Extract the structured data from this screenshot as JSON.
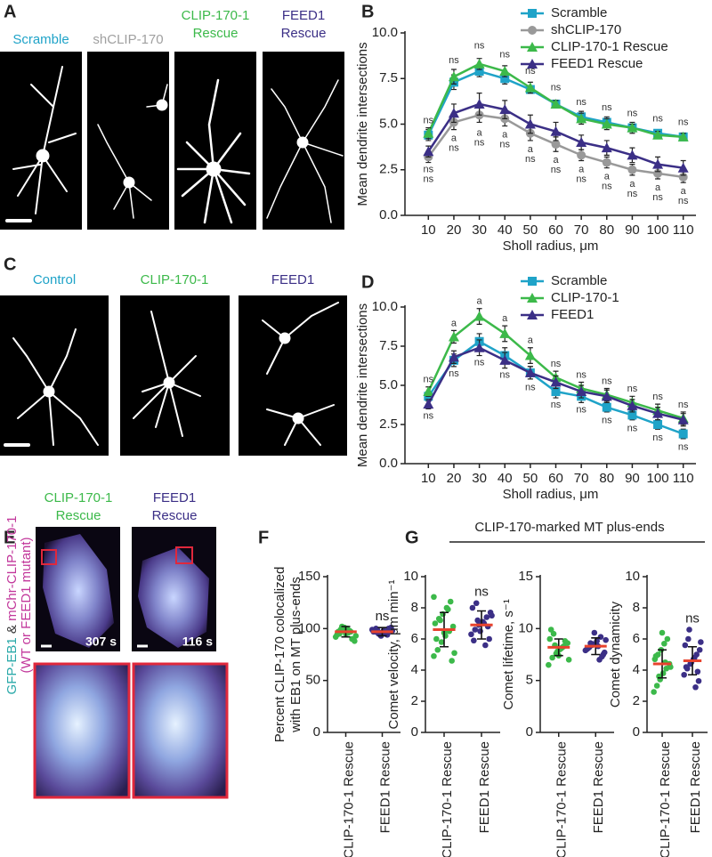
{
  "panel_a": {
    "letter": "A",
    "labels": [
      [
        "Scramble"
      ],
      [
        "shCLIP-170"
      ],
      [
        "CLIP-170-1",
        "Rescue"
      ],
      [
        "FEED1",
        "Rescue"
      ]
    ],
    "colors": [
      "#1fa3c8",
      "#a0a0a0",
      "#3cb94a",
      "#3b2f86"
    ]
  },
  "panel_c": {
    "letter": "C",
    "labels": [
      "Control",
      "CLIP-170-1",
      "FEED1"
    ],
    "colors": [
      "#1fa3c8",
      "#3cb94a",
      "#3b2f86"
    ]
  },
  "panel_e": {
    "letter": "E",
    "labels": [
      [
        "CLIP-170-1",
        "Rescue"
      ],
      [
        "FEED1",
        "Rescue"
      ]
    ],
    "colors": [
      "#3cb94a",
      "#3b2f86"
    ],
    "times": [
      "307 s",
      "116 s"
    ],
    "side_label": [
      {
        "text": "GFP-EB1",
        "color": "#2aa9a9"
      },
      {
        "text": " & ",
        "color": "#333333"
      },
      {
        "text": "mChr-CLIP-170-1",
        "color": "#c2379b"
      }
    ],
    "side_label_2": {
      "text": "(WT or FEED1 mutant)",
      "color": "#c2379b"
    }
  },
  "panel_g": {
    "letter": "G",
    "header": "CLIP-170-marked MT plus-ends"
  },
  "chart_data": [
    {
      "type": "line",
      "panel_letter": "B",
      "xlabel": "Sholl radius, μm",
      "ylabel": "Mean dendrite intersections",
      "x": [
        10,
        20,
        30,
        40,
        50,
        60,
        70,
        80,
        90,
        100,
        110
      ],
      "xlim": [
        5,
        115
      ],
      "xticks": [
        10,
        20,
        30,
        40,
        50,
        60,
        70,
        80,
        90,
        100,
        110
      ],
      "ylim": [
        0,
        10
      ],
      "yticks": [
        {
          "value": 0,
          "label": "0.0"
        },
        {
          "value": 2.5,
          "label": "2.5"
        },
        {
          "value": 5,
          "label": "5.0"
        },
        {
          "value": 7.5,
          "label": "7.5"
        },
        {
          "value": 10,
          "label": "10.0"
        }
      ],
      "legend": "upper right",
      "series": [
        {
          "name": "Scramble",
          "color": "#1fa3c8",
          "marker": "square",
          "values": [
            4.4,
            7.3,
            7.9,
            7.5,
            6.9,
            6.1,
            5.4,
            5.1,
            4.8,
            4.5,
            4.3
          ],
          "errors": [
            0.3,
            0.4,
            0.3,
            0.3,
            0.2,
            0.2,
            0.3,
            0.3,
            0.3,
            0.2,
            0.2
          ]
        },
        {
          "name": "shCLIP-170",
          "color": "#999999",
          "marker": "circle",
          "values": [
            3.2,
            5.1,
            5.5,
            5.3,
            4.5,
            3.9,
            3.3,
            2.9,
            2.5,
            2.3,
            2.1
          ],
          "errors": [
            0.3,
            0.4,
            0.4,
            0.4,
            0.4,
            0.4,
            0.3,
            0.3,
            0.3,
            0.3,
            0.3
          ],
          "annotations": [
            "ns",
            "a",
            "a",
            "a",
            "a",
            "a",
            "a",
            "a",
            "a",
            "a",
            "a"
          ],
          "annotation_side": "below"
        },
        {
          "name": "CLIP-170-1 Rescue",
          "color": "#3cb94a",
          "marker": "triangle",
          "values": [
            4.5,
            7.6,
            8.3,
            7.9,
            7.0,
            6.1,
            5.3,
            5.0,
            4.8,
            4.4,
            4.3
          ],
          "errors": [
            0.3,
            0.4,
            0.3,
            0.3,
            0.3,
            0.2,
            0.3,
            0.3,
            0.2,
            0.2,
            0.2
          ],
          "annotations": [
            "ns",
            "ns",
            "ns",
            "ns",
            "ns",
            "ns",
            "ns",
            "ns",
            "ns",
            "ns",
            "ns"
          ],
          "annotation_side": "above"
        },
        {
          "name": "FEED1 Rescue",
          "color": "#3b2f86",
          "marker": "triangle",
          "values": [
            3.5,
            5.6,
            6.1,
            5.8,
            5.0,
            4.6,
            4.0,
            3.7,
            3.3,
            2.8,
            2.6
          ],
          "errors": [
            0.3,
            0.5,
            0.6,
            0.5,
            0.5,
            0.5,
            0.4,
            0.4,
            0.4,
            0.4,
            0.4
          ],
          "annotations": [
            "ns",
            "ns",
            "ns",
            "ns",
            "ns",
            "ns",
            "ns",
            "ns",
            "ns",
            "ns",
            "ns"
          ],
          "annotation_side": "below"
        }
      ]
    },
    {
      "type": "line",
      "panel_letter": "D",
      "xlabel": "Sholl radius, μm",
      "ylabel": "Mean dendrite intersections",
      "x": [
        10,
        20,
        30,
        40,
        50,
        60,
        70,
        80,
        90,
        100,
        110
      ],
      "xlim": [
        5,
        115
      ],
      "xticks": [
        10,
        20,
        30,
        40,
        50,
        60,
        70,
        80,
        90,
        100,
        110
      ],
      "ylim": [
        0,
        10
      ],
      "yticks": [
        {
          "value": 0,
          "label": "0.0"
        },
        {
          "value": 2.5,
          "label": "2.5"
        },
        {
          "value": 5,
          "label": "5.0"
        },
        {
          "value": 7.5,
          "label": "7.5"
        },
        {
          "value": 10,
          "label": "10.0"
        }
      ],
      "legend": "upper right",
      "series": [
        {
          "name": "Scramble",
          "color": "#1fa3c8",
          "marker": "square",
          "values": [
            4.3,
            6.6,
            7.8,
            6.9,
            5.8,
            4.6,
            4.3,
            3.6,
            3.1,
            2.5,
            1.9
          ],
          "errors": [
            0.3,
            0.4,
            0.5,
            0.5,
            0.4,
            0.4,
            0.4,
            0.3,
            0.3,
            0.3,
            0.3
          ]
        },
        {
          "name": "CLIP-170-1",
          "color": "#3cb94a",
          "marker": "triangle",
          "values": [
            4.6,
            8.1,
            9.4,
            8.3,
            6.9,
            5.5,
            4.8,
            4.4,
            3.9,
            3.4,
            2.9
          ],
          "errors": [
            0.3,
            0.4,
            0.5,
            0.5,
            0.5,
            0.4,
            0.4,
            0.4,
            0.4,
            0.4,
            0.4
          ],
          "annotations": [
            "ns",
            "a",
            "a",
            "a",
            "a",
            "ns",
            "ns",
            "ns",
            "ns",
            "ns",
            "ns"
          ],
          "annotation_side": "above"
        },
        {
          "name": "FEED1",
          "color": "#3b2f86",
          "marker": "triangle",
          "values": [
            3.8,
            6.8,
            7.4,
            6.6,
            5.8,
            5.2,
            4.6,
            4.3,
            3.7,
            3.2,
            2.8
          ],
          "errors": [
            0.3,
            0.4,
            0.5,
            0.5,
            0.4,
            0.4,
            0.4,
            0.4,
            0.4,
            0.4,
            0.4
          ],
          "annotations": [
            "ns",
            "ns",
            "ns",
            "ns",
            "ns",
            "ns",
            "ns",
            "ns",
            "ns",
            "ns",
            "ns"
          ],
          "annotation_side": "below"
        }
      ]
    },
    {
      "type": "dotplot",
      "panel_letter": "F",
      "ylabel": [
        "Percent CLIP-170 colocalized",
        "with EB1 on MT plus-ends"
      ],
      "categories": [
        "CLIP-170-1 Rescue",
        "FEED1 Rescue"
      ],
      "colors": [
        "#3cb94a",
        "#3b2f86"
      ],
      "mean_color": "#e8432e",
      "ylim": [
        0,
        150
      ],
      "yticks": [
        0,
        50,
        100,
        150
      ],
      "values": [
        97,
        97
      ],
      "errors": [
        5,
        4
      ],
      "annotations": [
        null,
        "ns"
      ],
      "points": [
        [
          92,
          95,
          98,
          100,
          97,
          88,
          94,
          99,
          101,
          96,
          90,
          93,
          97,
          102,
          95,
          98
        ],
        [
          95,
          97,
          99,
          100,
          96,
          98,
          94,
          101,
          97,
          99,
          93,
          96,
          100,
          98,
          97,
          95
        ]
      ]
    },
    {
      "type": "dotplot",
      "ylabel": [
        "Comet velocity, μm min⁻¹"
      ],
      "categories": [
        "CLIP-170-1 Rescue",
        "FEED1 Rescue"
      ],
      "colors": [
        "#3cb94a",
        "#3b2f86"
      ],
      "mean_color": "#e8432e",
      "ylim": [
        0,
        10
      ],
      "yticks": [
        0,
        2,
        4,
        6,
        8,
        10
      ],
      "values": [
        6.6,
        6.9
      ],
      "errors": [
        1.1,
        0.9
      ],
      "annotations": [
        null,
        "ns"
      ],
      "points": [
        [
          4.9,
          5.3,
          5.8,
          6.2,
          6.5,
          6.8,
          7.0,
          7.3,
          7.6,
          8.0,
          8.4,
          5.1,
          6.0,
          7.2,
          6.4,
          7.9,
          4.6,
          8.7
        ],
        [
          5.6,
          6.0,
          6.3,
          6.6,
          6.9,
          7.1,
          7.4,
          7.7,
          8.0,
          8.3,
          6.5,
          7.0,
          6.8,
          7.5,
          5.9,
          7.2
        ]
      ]
    },
    {
      "type": "dotplot",
      "ylabel": [
        "Comet lifetime, s⁻¹"
      ],
      "categories": [
        "CLIP-170-1 Rescue",
        "FEED1 Rescue"
      ],
      "colors": [
        "#3cb94a",
        "#3b2f86"
      ],
      "mean_color": "#e8432e",
      "ylim": [
        0,
        15
      ],
      "yticks": [
        0,
        5,
        10,
        15
      ],
      "values": [
        8.2,
        8.3
      ],
      "errors": [
        0.8,
        0.8
      ],
      "points": [
        [
          6.5,
          7.2,
          7.6,
          8.0,
          8.3,
          8.6,
          9.0,
          9.5,
          7.8,
          8.1,
          8.8,
          7.0,
          9.9,
          8.4,
          7.4,
          8.2
        ],
        [
          7.0,
          7.5,
          7.9,
          8.2,
          8.5,
          8.8,
          9.2,
          7.7,
          8.0,
          8.6,
          9.6,
          8.3,
          7.3,
          8.9,
          8.1,
          8.4
        ]
      ]
    },
    {
      "type": "dotplot",
      "ylabel": [
        "Comet dynamicity"
      ],
      "categories": [
        "CLIP-170-1 Rescue",
        "FEED1 Rescue"
      ],
      "colors": [
        "#3cb94a",
        "#3b2f86"
      ],
      "mean_color": "#e8432e",
      "ylim": [
        0,
        10
      ],
      "yticks": [
        0,
        2,
        4,
        6,
        8,
        10
      ],
      "values": [
        4.4,
        4.6
      ],
      "errors": [
        0.9,
        0.9
      ],
      "annotations": [
        null,
        "ns"
      ],
      "points": [
        [
          2.6,
          3.0,
          3.4,
          3.8,
          4.1,
          4.4,
          4.7,
          5.0,
          5.3,
          5.7,
          6.0,
          4.2,
          4.9,
          3.6,
          6.4,
          4.5
        ],
        [
          2.9,
          3.3,
          3.7,
          4.1,
          4.4,
          4.7,
          5.0,
          5.3,
          5.6,
          6.0,
          4.5,
          4.8,
          3.9,
          5.8,
          4.2,
          6.6
        ]
      ]
    }
  ]
}
